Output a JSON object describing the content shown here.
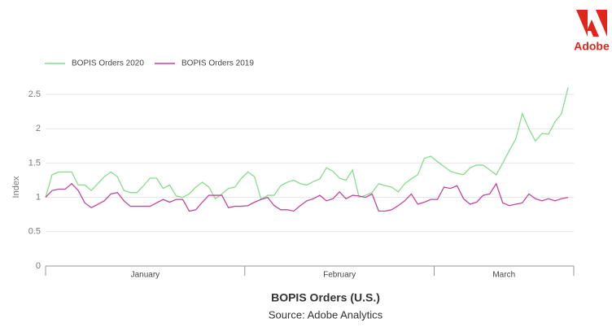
{
  "brand": "Adobe",
  "chart_data": {
    "type": "line",
    "title": "BOPIS Orders (U.S.)",
    "subtitle": "Source: Adobe Analytics",
    "y_label": "Index",
    "categories": [
      "January",
      null,
      null,
      null,
      null,
      null,
      null,
      null,
      null,
      null,
      null,
      null,
      null,
      null,
      null,
      null,
      null,
      null,
      null,
      null,
      null,
      null,
      null,
      null,
      null,
      null,
      null,
      null,
      null,
      null,
      null,
      "February",
      null,
      null,
      null,
      null,
      null,
      null,
      null,
      null,
      null,
      null,
      null,
      null,
      null,
      null,
      null,
      null,
      null,
      null,
      null,
      null,
      null,
      null,
      null,
      null,
      null,
      null,
      null,
      null,
      "March",
      null,
      null,
      null,
      null,
      null,
      null,
      null,
      null,
      null,
      null,
      null,
      null,
      null,
      null,
      null,
      null,
      null,
      null,
      null,
      null
    ],
    "series": [
      {
        "name": "BOPIS Orders 2020",
        "color": "#86dd8a",
        "values": [
          1.0,
          1.33,
          1.37,
          1.37,
          1.37,
          1.18,
          1.18,
          1.1,
          1.2,
          1.3,
          1.37,
          1.3,
          1.1,
          1.07,
          1.07,
          1.17,
          1.28,
          1.28,
          1.13,
          1.18,
          1.02,
          1.0,
          1.05,
          1.15,
          1.22,
          1.15,
          0.98,
          1.05,
          1.13,
          1.15,
          1.28,
          1.37,
          1.3,
          0.97,
          1.03,
          1.03,
          1.17,
          1.22,
          1.25,
          1.2,
          1.18,
          1.23,
          1.27,
          1.43,
          1.38,
          1.28,
          1.25,
          1.4,
          1.0,
          1.03,
          1.07,
          1.2,
          1.17,
          1.15,
          1.08,
          1.2,
          1.27,
          1.33,
          1.57,
          1.6,
          1.52,
          1.45,
          1.38,
          1.35,
          1.33,
          1.43,
          1.47,
          1.47,
          1.4,
          1.33,
          1.5,
          1.68,
          1.85,
          2.22,
          2.0,
          1.82,
          1.93,
          1.92,
          2.1,
          2.22,
          2.6
        ]
      },
      {
        "name": "BOPIS Orders 2019",
        "color": "#c2469d",
        "values": [
          1.0,
          1.1,
          1.12,
          1.12,
          1.2,
          1.1,
          0.92,
          0.85,
          0.9,
          0.95,
          1.05,
          1.07,
          0.95,
          0.87,
          0.87,
          0.87,
          0.87,
          0.92,
          0.97,
          0.93,
          0.97,
          0.97,
          0.8,
          0.82,
          0.93,
          1.03,
          1.03,
          1.03,
          0.85,
          0.87,
          0.87,
          0.88,
          0.93,
          0.97,
          1.0,
          0.88,
          0.82,
          0.82,
          0.8,
          0.88,
          0.95,
          0.98,
          1.03,
          0.95,
          0.98,
          1.08,
          0.98,
          1.03,
          1.02,
          1.0,
          1.05,
          0.8,
          0.8,
          0.82,
          0.88,
          0.95,
          1.05,
          0.9,
          0.93,
          0.97,
          0.97,
          1.15,
          1.13,
          1.17,
          0.98,
          0.9,
          0.93,
          1.03,
          1.05,
          1.2,
          0.92,
          0.88,
          0.9,
          0.92,
          1.05,
          0.98,
          0.95,
          0.98,
          0.95,
          0.98,
          1.0
        ]
      }
    ],
    "ylim": [
      0,
      2.5
    ],
    "yticks": [
      0,
      0.5,
      1,
      1.5,
      2,
      2.5
    ],
    "grid": true
  }
}
